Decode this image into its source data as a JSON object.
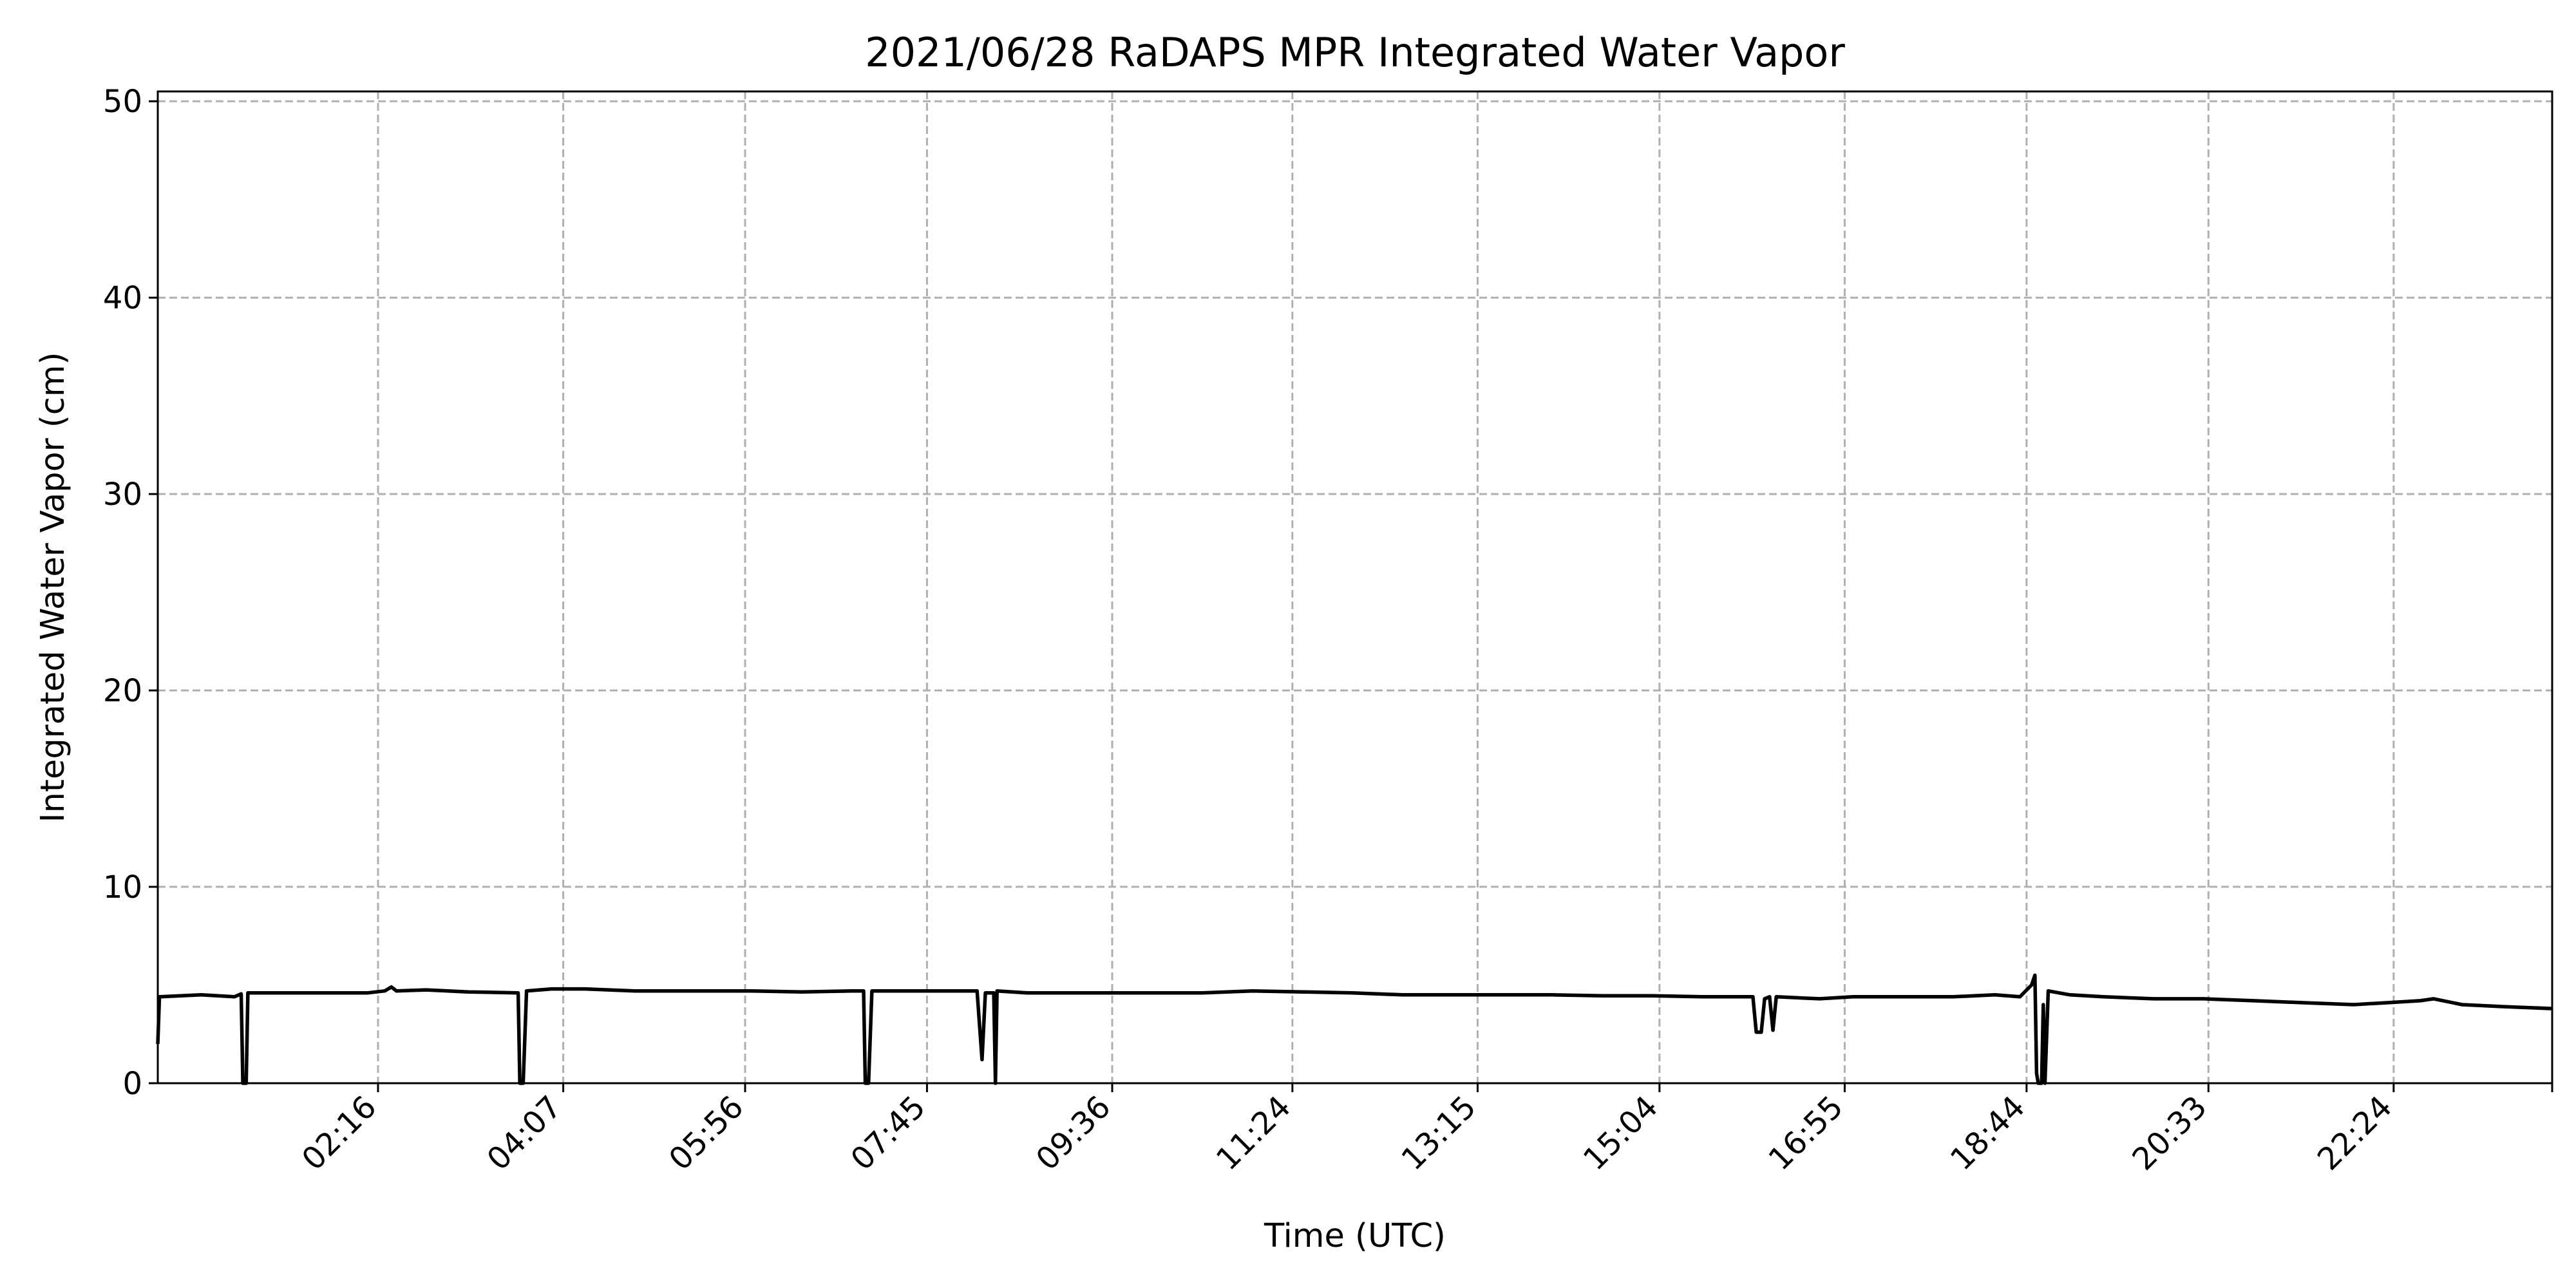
{
  "chart_data": {
    "type": "line",
    "title": "2021/06/28 RaDAPS MPR Integrated Water Vapor",
    "xlabel": "Time (UTC)",
    "ylabel": "Integrated Water Vapor (cm)",
    "xlim": [
      "00:04",
      "23:59"
    ],
    "ylim": [
      0,
      50.5
    ],
    "x_ticks": [
      "02:16",
      "04:07",
      "05:56",
      "07:45",
      "09:36",
      "11:24",
      "13:15",
      "15:04",
      "16:55",
      "18:44",
      "20:33",
      "22:24",
      ""
    ],
    "x_tick_times": [
      "02:16",
      "04:07",
      "05:56",
      "07:45",
      "09:36",
      "11:24",
      "13:15",
      "15:04",
      "16:55",
      "18:44",
      "20:33",
      "22:24",
      "23:59"
    ],
    "y_ticks": [
      0,
      10,
      20,
      30,
      40,
      50
    ],
    "grid": true,
    "series": [
      {
        "color": "#000000",
        "points": [
          [
            "00:04",
            2.0
          ],
          [
            "00:05",
            4.4
          ],
          [
            "00:30",
            4.5
          ],
          [
            "00:50",
            4.4
          ],
          [
            "00:54",
            4.55
          ],
          [
            "00:55",
            0.0
          ],
          [
            "00:57",
            0.0
          ],
          [
            "00:58",
            4.6
          ],
          [
            "01:30",
            4.6
          ],
          [
            "02:10",
            4.6
          ],
          [
            "02:20",
            4.7
          ],
          [
            "02:24",
            4.9
          ],
          [
            "02:27",
            4.7
          ],
          [
            "02:45",
            4.75
          ],
          [
            "03:10",
            4.65
          ],
          [
            "03:40",
            4.6
          ],
          [
            "03:41",
            0.0
          ],
          [
            "03:43",
            0.0
          ],
          [
            "03:45",
            4.7
          ],
          [
            "04:00",
            4.8
          ],
          [
            "04:20",
            4.8
          ],
          [
            "04:50",
            4.7
          ],
          [
            "05:30",
            4.7
          ],
          [
            "06:00",
            4.7
          ],
          [
            "06:30",
            4.65
          ],
          [
            "07:00",
            4.7
          ],
          [
            "07:07",
            4.7
          ],
          [
            "07:08",
            0.0
          ],
          [
            "07:10",
            0.0
          ],
          [
            "07:12",
            4.7
          ],
          [
            "07:45",
            4.7
          ],
          [
            "08:15",
            4.7
          ],
          [
            "08:18",
            1.2
          ],
          [
            "08:20",
            4.6
          ],
          [
            "08:25",
            4.6
          ],
          [
            "08:26",
            0.0
          ],
          [
            "08:27",
            4.7
          ],
          [
            "08:45",
            4.6
          ],
          [
            "09:30",
            4.6
          ],
          [
            "10:30",
            4.6
          ],
          [
            "11:00",
            4.7
          ],
          [
            "11:30",
            4.65
          ],
          [
            "12:00",
            4.6
          ],
          [
            "12:30",
            4.5
          ],
          [
            "13:00",
            4.5
          ],
          [
            "13:30",
            4.5
          ],
          [
            "14:00",
            4.5
          ],
          [
            "14:30",
            4.45
          ],
          [
            "15:00",
            4.45
          ],
          [
            "15:30",
            4.4
          ],
          [
            "16:00",
            4.4
          ],
          [
            "16:02",
            2.6
          ],
          [
            "16:05",
            2.6
          ],
          [
            "16:07",
            4.3
          ],
          [
            "16:10",
            4.4
          ],
          [
            "16:12",
            2.7
          ],
          [
            "16:14",
            4.4
          ],
          [
            "16:40",
            4.3
          ],
          [
            "17:00",
            4.4
          ],
          [
            "17:30",
            4.4
          ],
          [
            "18:00",
            4.4
          ],
          [
            "18:25",
            4.5
          ],
          [
            "18:40",
            4.4
          ],
          [
            "18:47",
            5.0
          ],
          [
            "18:49",
            5.5
          ],
          [
            "18:50",
            0.5
          ],
          [
            "18:51",
            0.0
          ],
          [
            "18:53",
            0.0
          ],
          [
            "18:54",
            4.0
          ],
          [
            "18:55",
            0.0
          ],
          [
            "18:57",
            4.7
          ],
          [
            "19:10",
            4.5
          ],
          [
            "19:30",
            4.4
          ],
          [
            "20:00",
            4.3
          ],
          [
            "20:30",
            4.3
          ],
          [
            "21:00",
            4.2
          ],
          [
            "21:30",
            4.1
          ],
          [
            "22:00",
            4.0
          ],
          [
            "22:20",
            4.1
          ],
          [
            "22:40",
            4.2
          ],
          [
            "22:48",
            4.3
          ],
          [
            "23:05",
            4.0
          ],
          [
            "23:30",
            3.9
          ],
          [
            "23:59",
            3.8
          ]
        ]
      }
    ]
  }
}
